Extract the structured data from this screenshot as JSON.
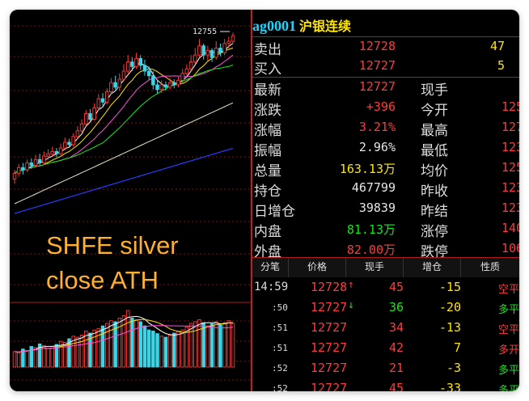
{
  "caption": {
    "line1": "SHFE silver",
    "line2": "close ATH"
  },
  "chart_data": {
    "type": "candlestick",
    "price_high_label": "12755",
    "candles": [
      [
        11480,
        11530,
        11440,
        11560
      ],
      [
        11530,
        11580,
        11500,
        11610
      ],
      [
        11580,
        11560,
        11520,
        11620
      ],
      [
        11560,
        11620,
        11540,
        11650
      ],
      [
        11620,
        11600,
        11570,
        11660
      ],
      [
        11600,
        11650,
        11580,
        11690
      ],
      [
        11650,
        11620,
        11600,
        11700
      ],
      [
        11620,
        11680,
        11600,
        11720
      ],
      [
        11680,
        11700,
        11650,
        11740
      ],
      [
        11700,
        11720,
        11680,
        11760
      ],
      [
        11720,
        11700,
        11670,
        11750
      ],
      [
        11700,
        11750,
        11690,
        11790
      ],
      [
        11750,
        11800,
        11730,
        11840
      ],
      [
        11800,
        11780,
        11750,
        11830
      ],
      [
        11780,
        11850,
        11760,
        11880
      ],
      [
        11850,
        11900,
        11830,
        11940
      ],
      [
        11900,
        11960,
        11880,
        12000
      ],
      [
        11960,
        12050,
        11940,
        12080
      ],
      [
        12050,
        12000,
        11980,
        12090
      ],
      [
        12000,
        12100,
        11990,
        12140
      ],
      [
        12100,
        12180,
        12080,
        12220
      ],
      [
        12180,
        12150,
        12120,
        12230
      ],
      [
        12150,
        12240,
        12130,
        12270
      ],
      [
        12240,
        12320,
        12220,
        12360
      ],
      [
        12320,
        12280,
        12260,
        12380
      ],
      [
        12280,
        12350,
        12250,
        12400
      ],
      [
        12350,
        12420,
        12330,
        12480
      ],
      [
        12420,
        12500,
        12400,
        12560
      ],
      [
        12500,
        12460,
        12420,
        12540
      ],
      [
        12460,
        12530,
        12440,
        12580
      ],
      [
        12530,
        12470,
        12430,
        12560
      ],
      [
        12470,
        12420,
        12380,
        12520
      ],
      [
        12420,
        12380,
        12340,
        12460
      ],
      [
        12380,
        12300,
        12260,
        12420
      ],
      [
        12300,
        12260,
        12220,
        12340
      ],
      [
        12260,
        12300,
        12230,
        12340
      ],
      [
        12300,
        12280,
        12250,
        12330
      ],
      [
        12280,
        12320,
        12260,
        12360
      ],
      [
        12320,
        12300,
        12270,
        12350
      ],
      [
        12300,
        12340,
        12280,
        12370
      ],
      [
        12340,
        12400,
        12320,
        12440
      ],
      [
        12400,
        12440,
        12380,
        12480
      ],
      [
        12440,
        12500,
        12420,
        12560
      ],
      [
        12500,
        12560,
        12480,
        12620
      ],
      [
        12560,
        12640,
        12540,
        12700
      ],
      [
        12640,
        12560,
        12520,
        12660
      ],
      [
        12560,
        12600,
        12510,
        12640
      ],
      [
        12600,
        12540,
        12500,
        12620
      ],
      [
        12540,
        12620,
        12520,
        12680
      ],
      [
        12620,
        12580,
        12550,
        12660
      ],
      [
        12580,
        12660,
        12560,
        12700
      ],
      [
        12660,
        12680,
        12620,
        12720
      ],
      [
        12680,
        12728,
        12660,
        12755
      ]
    ],
    "volume": [
      30,
      28,
      35,
      32,
      40,
      38,
      45,
      42,
      36,
      40,
      44,
      50,
      48,
      55,
      60,
      58,
      62,
      70,
      66,
      72,
      75,
      80,
      85,
      90,
      88,
      95,
      100,
      110,
      95,
      92,
      88,
      80,
      72,
      70,
      65,
      60,
      58,
      62,
      66,
      70,
      72,
      78,
      85,
      88,
      92,
      86,
      80,
      84,
      88,
      82,
      86,
      90,
      85
    ]
  },
  "quote": {
    "code": "ag0001",
    "name": "沪银连续",
    "sell": {
      "label": "卖出",
      "price": "12728",
      "qty": "47"
    },
    "buy": {
      "label": "买入",
      "price": "12727",
      "qty": "5"
    },
    "rows": [
      {
        "l1": "最新",
        "v1": "12727",
        "c1": "red",
        "l2": "现手",
        "v2": ""
      },
      {
        "l1": "涨跌",
        "v1": "+396",
        "c1": "red",
        "l2": "今开",
        "v2": "125"
      },
      {
        "l1": "涨幅",
        "v1": "3.21%",
        "c1": "red",
        "l2": "最高",
        "v2": "127"
      },
      {
        "l1": "振幅",
        "v1": "2.96%",
        "c1": "white",
        "l2": "最低",
        "v2": "123"
      },
      {
        "l1": "总量",
        "v1": "163.13万",
        "c1": "yellow",
        "l2": "均价",
        "v2": "125"
      },
      {
        "l1": "持仓",
        "v1": "467799",
        "c1": "white",
        "l2": "昨收",
        "v2": "123"
      },
      {
        "l1": "日增仓",
        "v1": "39839",
        "c1": "white",
        "l2": "昨结",
        "v2": "123"
      },
      {
        "l1": "内盘",
        "v1": "81.13万",
        "c1": "green",
        "l2": "涨停",
        "v2": "140"
      },
      {
        "l1": "外盘",
        "v1": "82.00万",
        "c1": "red",
        "l2": "跌停",
        "v2": "106"
      }
    ],
    "headers": [
      "分笔",
      "价格",
      "现手",
      "增仓",
      "性质"
    ],
    "ticks": [
      {
        "time": "14:59",
        "price": "12728",
        "arrow": "up",
        "hand": "45",
        "add": "-15",
        "nature": "空平",
        "nc": "red"
      },
      {
        "time": ":50",
        "price": "12727",
        "arrow": "down",
        "hand": "36",
        "add": "-20",
        "nature": "多平",
        "nc": "green"
      },
      {
        "time": ":51",
        "price": "12727",
        "arrow": "",
        "hand": "34",
        "add": "-13",
        "nature": "空平",
        "nc": "red"
      },
      {
        "time": ":51",
        "price": "12727",
        "arrow": "",
        "hand": "42",
        "add": "7",
        "nature": "多开",
        "nc": "red"
      },
      {
        "time": ":52",
        "price": "12727",
        "arrow": "",
        "hand": "21",
        "add": "-3",
        "nature": "多平",
        "nc": "green"
      },
      {
        "time": ":52",
        "price": "12727",
        "arrow": "",
        "hand": "45",
        "add": "-33",
        "nature": "多平",
        "nc": "green"
      }
    ]
  }
}
